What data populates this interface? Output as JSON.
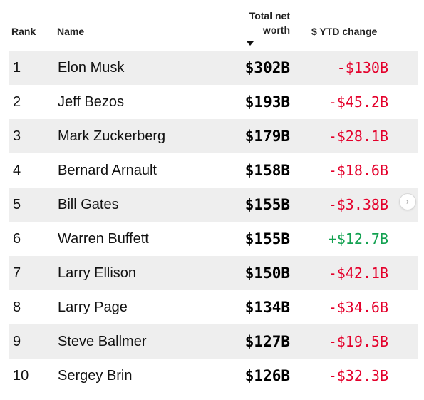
{
  "header": {
    "rank": "Rank",
    "name": "Name",
    "net_worth_line1": "Total net",
    "net_worth_line2": "worth",
    "ytd": "$ YTD change",
    "sort_icon": "sort-descending-icon"
  },
  "rows": [
    {
      "rank": "1",
      "name": "Elon Musk",
      "net_worth": "$302B",
      "ytd": "-$130B",
      "direction": "negative"
    },
    {
      "rank": "2",
      "name": "Jeff Bezos",
      "net_worth": "$193B",
      "ytd": "-$45.2B",
      "direction": "negative"
    },
    {
      "rank": "3",
      "name": "Mark Zuckerberg",
      "net_worth": "$179B",
      "ytd": "-$28.1B",
      "direction": "negative"
    },
    {
      "rank": "4",
      "name": "Bernard Arnault",
      "net_worth": "$158B",
      "ytd": "-$18.6B",
      "direction": "negative"
    },
    {
      "rank": "5",
      "name": "Bill Gates",
      "net_worth": "$155B",
      "ytd": "-$3.38B",
      "direction": "negative"
    },
    {
      "rank": "6",
      "name": "Warren Buffett",
      "net_worth": "$155B",
      "ytd": "+$12.7B",
      "direction": "positive"
    },
    {
      "rank": "7",
      "name": "Larry Ellison",
      "net_worth": "$150B",
      "ytd": "-$42.1B",
      "direction": "negative"
    },
    {
      "rank": "8",
      "name": "Larry Page",
      "net_worth": "$134B",
      "ytd": "-$34.6B",
      "direction": "negative"
    },
    {
      "rank": "9",
      "name": "Steve Ballmer",
      "net_worth": "$127B",
      "ytd": "-$19.5B",
      "direction": "negative"
    },
    {
      "rank": "10",
      "name": "Sergey Brin",
      "net_worth": "$126B",
      "ytd": "-$32.3B",
      "direction": "negative"
    }
  ],
  "colors": {
    "negative": "#e4002b",
    "positive": "#12a150",
    "row_shade": "#eeeeee"
  },
  "scroll_button": {
    "icon": "chevron-right-icon"
  }
}
